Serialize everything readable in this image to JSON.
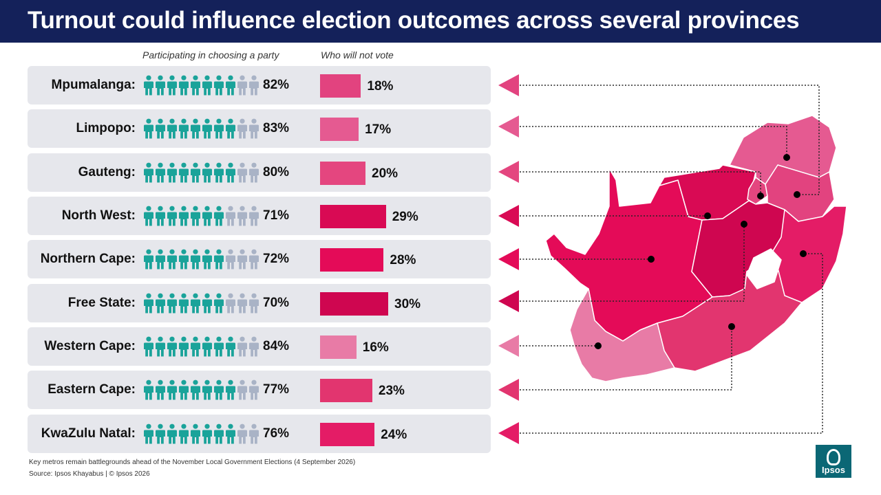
{
  "title": "Turnout could influence election outcomes across several provinces",
  "columns": {
    "participating": "Participating in choosing a party",
    "not_vote": "Who will not vote"
  },
  "colors": {
    "header_bg": "#14215a",
    "person_active": "#1aa39a",
    "person_inactive": "#a9b3c6",
    "row_bg": "#e6e7ec"
  },
  "chart_data": {
    "type": "bar",
    "categories": [
      "Mpumalanga",
      "Limpopo",
      "Gauteng",
      "North West",
      "Northern Cape",
      "Free State",
      "Western Cape",
      "Eastern Cape",
      "KwaZulu Natal"
    ],
    "series": [
      {
        "name": "Participating in choosing a party",
        "values": [
          82,
          83,
          80,
          71,
          72,
          70,
          84,
          77,
          76
        ]
      },
      {
        "name": "Who will not vote",
        "values": [
          18,
          17,
          20,
          29,
          28,
          30,
          16,
          23,
          24
        ]
      }
    ],
    "rows": [
      {
        "label": "Mpumalanga:",
        "participating": 82,
        "participating_label": "82%",
        "not_vote": 18,
        "not_vote_label": "18%",
        "color": "#e2437f"
      },
      {
        "label": "Limpopo:",
        "participating": 83,
        "participating_label": "83%",
        "not_vote": 17,
        "not_vote_label": "17%",
        "color": "#e55a91"
      },
      {
        "label": "Gauteng:",
        "participating": 80,
        "participating_label": "80%",
        "not_vote": 20,
        "not_vote_label": "20%",
        "color": "#e4467f"
      },
      {
        "label": "North West:",
        "participating": 71,
        "participating_label": "71%",
        "not_vote": 29,
        "not_vote_label": "29%",
        "color": "#d90a54"
      },
      {
        "label": "Northern Cape:",
        "participating": 72,
        "participating_label": "72%",
        "not_vote": 28,
        "not_vote_label": "28%",
        "color": "#e40b58"
      },
      {
        "label": "Free State:",
        "participating": 70,
        "participating_label": "70%",
        "not_vote": 30,
        "not_vote_label": "30%",
        "color": "#cf0650"
      },
      {
        "label": "Western Cape:",
        "participating": 84,
        "participating_label": "84%",
        "not_vote": 16,
        "not_vote_label": "16%",
        "color": "#e87ba6"
      },
      {
        "label": "Eastern Cape:",
        "participating": 77,
        "participating_label": "77%",
        "not_vote": 23,
        "not_vote_label": "23%",
        "color": "#e2356f"
      },
      {
        "label": "KwaZulu Natal:",
        "participating": 76,
        "participating_label": "76%",
        "not_vote": 24,
        "not_vote_label": "24%",
        "color": "#e41c66"
      }
    ]
  },
  "footer": {
    "note": "Key metros remain battlegrounds ahead of the November Local Government Elections (4 September 2026)",
    "source": "Source: Ipsos Khayabus  |  © Ipsos 2026"
  },
  "logo_text": "Ipsos"
}
